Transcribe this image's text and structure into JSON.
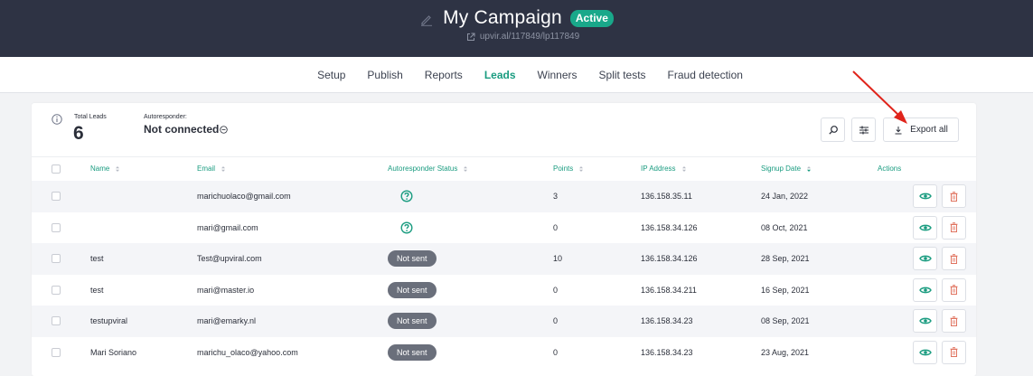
{
  "header": {
    "title": "My Campaign",
    "status_badge": "Active",
    "url": "upvir.al/117849/lp117849"
  },
  "nav": {
    "tabs": [
      {
        "label": "Setup",
        "active": false
      },
      {
        "label": "Publish",
        "active": false
      },
      {
        "label": "Reports",
        "active": false
      },
      {
        "label": "Leads",
        "active": true
      },
      {
        "label": "Winners",
        "active": false
      },
      {
        "label": "Split tests",
        "active": false
      },
      {
        "label": "Fraud detection",
        "active": false
      }
    ]
  },
  "summary": {
    "total_leads_label": "Total Leads",
    "total_leads_value": "6",
    "autoresponder_label": "Autoresponder:",
    "autoresponder_value": "Not connected"
  },
  "toolbar": {
    "export_label": "Export all"
  },
  "table": {
    "columns": [
      "Name",
      "Email",
      "Autoresponder Status",
      "Points",
      "IP Address",
      "Signup Date",
      "Actions"
    ],
    "rows": [
      {
        "name": "",
        "email": "marichuolaco@gmail.com",
        "status": "unknown",
        "status_label": "",
        "points": "3",
        "ip": "136.158.35.11",
        "date": "24 Jan, 2022"
      },
      {
        "name": "",
        "email": "mari@gmail.com",
        "status": "unknown",
        "status_label": "",
        "points": "0",
        "ip": "136.158.34.126",
        "date": "08 Oct, 2021"
      },
      {
        "name": "test",
        "email": "Test@upviral.com",
        "status": "not_sent",
        "status_label": "Not sent",
        "points": "10",
        "ip": "136.158.34.126",
        "date": "28 Sep, 2021"
      },
      {
        "name": "test",
        "email": "mari@master.io",
        "status": "not_sent",
        "status_label": "Not sent",
        "points": "0",
        "ip": "136.158.34.211",
        "date": "16 Sep, 2021"
      },
      {
        "name": "testupviral",
        "email": "mari@emarky.nl",
        "status": "not_sent",
        "status_label": "Not sent",
        "points": "0",
        "ip": "136.158.34.23",
        "date": "08 Sep, 2021"
      },
      {
        "name": "Mari Soriano",
        "email": "marichu_olaco@yahoo.com",
        "status": "not_sent",
        "status_label": "Not sent",
        "points": "0",
        "ip": "136.158.34.23",
        "date": "23 Aug, 2021"
      }
    ]
  },
  "colors": {
    "header_bg": "#2e3344",
    "accent": "#1a9c80",
    "badge_active": "#19a88a",
    "badge_not_sent": "#6a6f7b",
    "delete": "#e0735f",
    "annotation_arrow": "#e0241b"
  },
  "icons": [
    "pencil-icon",
    "external-link-icon",
    "info-icon",
    "minus-circle-icon",
    "search-icon",
    "filter-icon",
    "download-icon",
    "sort-icon",
    "question-circle-icon",
    "eye-icon",
    "trash-icon"
  ]
}
